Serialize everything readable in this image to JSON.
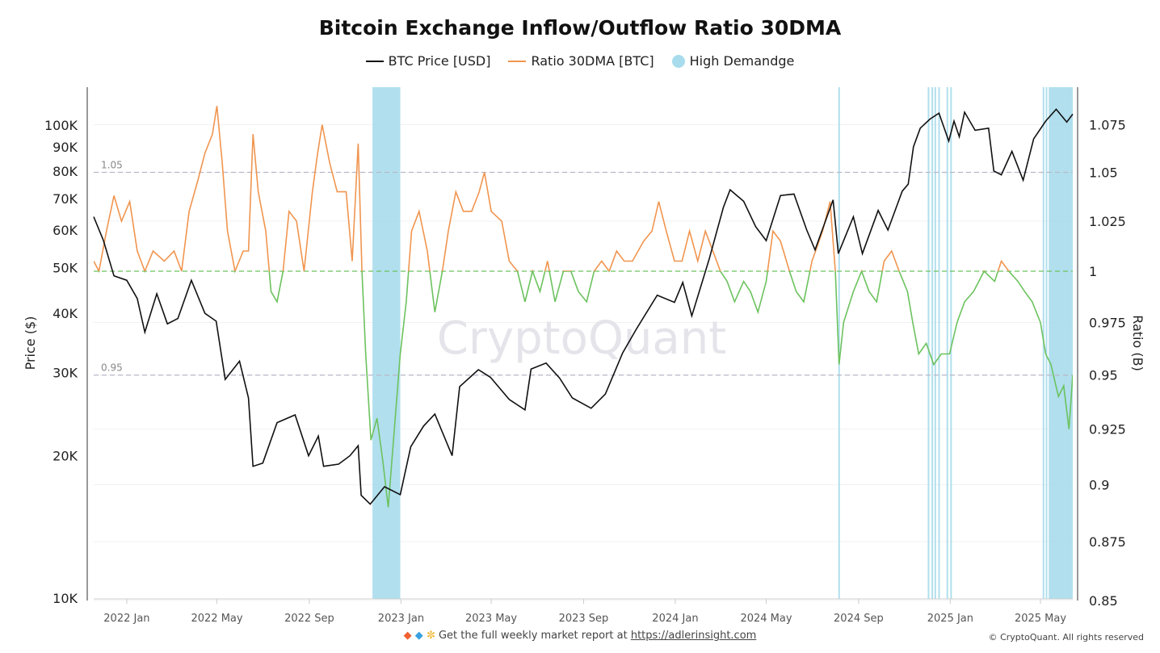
{
  "chart_data": {
    "type": "line",
    "title": "Bitcoin Exchange Inflow/Outflow Ratio 30DMA",
    "legend": [
      "BTC Price [USD]",
      "Ratio 30DMA [BTC]",
      "High Demandge"
    ],
    "legend_position": "top",
    "ylabel_left": "Price ($)",
    "ylabel_right": "Ratio (B)",
    "y_left_scale": "log",
    "y_left_range": [
      10000,
      120000
    ],
    "y_left_ticks": [
      "10K",
      "20K",
      "30K",
      "40K",
      "50K",
      "60K",
      "70K",
      "80K",
      "90K",
      "100K"
    ],
    "y_left_tick_values": [
      10000,
      20000,
      30000,
      40000,
      50000,
      60000,
      70000,
      80000,
      90000,
      100000
    ],
    "y_right_range": [
      0.85,
      1.09
    ],
    "y_right_ticks": [
      "0.85",
      "0.875",
      "0.9",
      "0.925",
      "0.95",
      "0.975",
      "1",
      "1.025",
      "1.05",
      "1.075"
    ],
    "y_right_tick_values": [
      0.85,
      0.875,
      0.9,
      0.925,
      0.95,
      0.975,
      1,
      1.025,
      1.05,
      1.075
    ],
    "x_range": [
      "2021-11-18",
      "2025-06-13"
    ],
    "x_ticks": [
      "2022 Jan",
      "2022 May",
      "2022 Sep",
      "2023 Jan",
      "2023 May",
      "2023 Sep",
      "2024 Jan",
      "2024 May",
      "2024 Sep",
      "2025 Jan",
      "2025 May"
    ],
    "x_tick_dates": [
      "2022-01-01",
      "2022-05-01",
      "2022-09-01",
      "2023-01-01",
      "2023-05-01",
      "2023-09-01",
      "2024-01-01",
      "2024-05-01",
      "2024-09-01",
      "2025-01-01",
      "2025-05-01"
    ],
    "reference_lines": [
      {
        "value": 1.05,
        "label": "1.05"
      },
      {
        "value": 0.95,
        "label": "0.95"
      },
      {
        "value": 1.0,
        "label": ""
      }
    ],
    "grid": true,
    "colors": {
      "price": "#111111",
      "ratio_above_1": "#f0954f",
      "ratio_below_1": "#6cc25e",
      "high_demand": "#a8dcec",
      "ref_line": "#b8b8c8",
      "ref_one": "#6cc25e"
    },
    "series": [
      {
        "name": "BTC Price [USD]",
        "axis": "left",
        "points": [
          [
            "2021-11-18",
            64000
          ],
          [
            "2021-12-01",
            57000
          ],
          [
            "2021-12-15",
            48000
          ],
          [
            "2022-01-01",
            47000
          ],
          [
            "2022-01-15",
            43000
          ],
          [
            "2022-01-25",
            36500
          ],
          [
            "2022-02-10",
            44000
          ],
          [
            "2022-02-24",
            38000
          ],
          [
            "2022-03-10",
            39000
          ],
          [
            "2022-03-28",
            47000
          ],
          [
            "2022-04-15",
            40000
          ],
          [
            "2022-04-30",
            38500
          ],
          [
            "2022-05-12",
            29000
          ],
          [
            "2022-05-31",
            31700
          ],
          [
            "2022-06-12",
            26500
          ],
          [
            "2022-06-18",
            19000
          ],
          [
            "2022-07-01",
            19300
          ],
          [
            "2022-07-20",
            23500
          ],
          [
            "2022-08-13",
            24400
          ],
          [
            "2022-08-31",
            20000
          ],
          [
            "2022-09-13",
            22000
          ],
          [
            "2022-09-20",
            19000
          ],
          [
            "2022-10-10",
            19200
          ],
          [
            "2022-10-25",
            20000
          ],
          [
            "2022-11-05",
            21000
          ],
          [
            "2022-11-09",
            16500
          ],
          [
            "2022-11-21",
            15800
          ],
          [
            "2022-12-10",
            17200
          ],
          [
            "2022-12-31",
            16550
          ],
          [
            "2023-01-14",
            20900
          ],
          [
            "2023-01-31",
            23100
          ],
          [
            "2023-02-15",
            24500
          ],
          [
            "2023-03-10",
            20000
          ],
          [
            "2023-03-20",
            28000
          ],
          [
            "2023-04-14",
            30400
          ],
          [
            "2023-04-30",
            29300
          ],
          [
            "2023-05-25",
            26300
          ],
          [
            "2023-06-15",
            25000
          ],
          [
            "2023-06-23",
            30500
          ],
          [
            "2023-07-13",
            31400
          ],
          [
            "2023-07-31",
            29200
          ],
          [
            "2023-08-17",
            26500
          ],
          [
            "2023-09-11",
            25200
          ],
          [
            "2023-09-30",
            27000
          ],
          [
            "2023-10-23",
            33000
          ],
          [
            "2023-11-10",
            37000
          ],
          [
            "2023-12-08",
            43700
          ],
          [
            "2023-12-31",
            42200
          ],
          [
            "2024-01-11",
            46500
          ],
          [
            "2024-01-23",
            39500
          ],
          [
            "2024-02-15",
            52000
          ],
          [
            "2024-03-05",
            67000
          ],
          [
            "2024-03-14",
            73000
          ],
          [
            "2024-04-01",
            69000
          ],
          [
            "2024-04-17",
            61000
          ],
          [
            "2024-05-01",
            57000
          ],
          [
            "2024-05-20",
            71000
          ],
          [
            "2024-06-07",
            71500
          ],
          [
            "2024-06-24",
            60000
          ],
          [
            "2024-07-05",
            54500
          ],
          [
            "2024-07-29",
            69500
          ],
          [
            "2024-08-05",
            53500
          ],
          [
            "2024-08-25",
            64000
          ],
          [
            "2024-09-06",
            53500
          ],
          [
            "2024-09-27",
            66000
          ],
          [
            "2024-10-10",
            60000
          ],
          [
            "2024-10-29",
            72500
          ],
          [
            "2024-11-06",
            75000
          ],
          [
            "2024-11-13",
            90000
          ],
          [
            "2024-11-22",
            98500
          ],
          [
            "2024-12-05",
            103000
          ],
          [
            "2024-12-17",
            106000
          ],
          [
            "2024-12-30",
            92500
          ],
          [
            "2025-01-06",
            102000
          ],
          [
            "2025-01-13",
            94500
          ],
          [
            "2025-01-20",
            106500
          ],
          [
            "2025-02-03",
            97500
          ],
          [
            "2025-02-21",
            98500
          ],
          [
            "2025-02-28",
            80000
          ],
          [
            "2025-03-10",
            78500
          ],
          [
            "2025-03-24",
            88000
          ],
          [
            "2025-04-08",
            76500
          ],
          [
            "2025-04-22",
            93500
          ],
          [
            "2025-05-08",
            102000
          ],
          [
            "2025-05-22",
            108000
          ],
          [
            "2025-06-05",
            101500
          ],
          [
            "2025-06-13",
            105500
          ]
        ]
      },
      {
        "name": "Ratio 30DMA [BTC]",
        "axis": "right",
        "points": [
          [
            "2021-11-18",
            1.005
          ],
          [
            "2021-11-25",
            1.0
          ],
          [
            "2021-12-05",
            1.02
          ],
          [
            "2021-12-15",
            1.038
          ],
          [
            "2021-12-25",
            1.025
          ],
          [
            "2022-01-05",
            1.035
          ],
          [
            "2022-01-15",
            1.01
          ],
          [
            "2022-01-25",
            1.0
          ],
          [
            "2022-02-05",
            1.01
          ],
          [
            "2022-02-20",
            1.005
          ],
          [
            "2022-03-05",
            1.01
          ],
          [
            "2022-03-15",
            1.0
          ],
          [
            "2022-03-25",
            1.03
          ],
          [
            "2022-04-05",
            1.045
          ],
          [
            "2022-04-15",
            1.06
          ],
          [
            "2022-04-25",
            1.07
          ],
          [
            "2022-05-01",
            1.085
          ],
          [
            "2022-05-08",
            1.055
          ],
          [
            "2022-05-15",
            1.02
          ],
          [
            "2022-05-25",
            1.0
          ],
          [
            "2022-06-05",
            1.01
          ],
          [
            "2022-06-12",
            1.01
          ],
          [
            "2022-06-18",
            1.07
          ],
          [
            "2022-06-25",
            1.04
          ],
          [
            "2022-07-05",
            1.02
          ],
          [
            "2022-07-12",
            0.99
          ],
          [
            "2022-07-20",
            0.985
          ],
          [
            "2022-07-28",
            1.0
          ],
          [
            "2022-08-05",
            1.03
          ],
          [
            "2022-08-15",
            1.025
          ],
          [
            "2022-08-25",
            1.0
          ],
          [
            "2022-09-05",
            1.04
          ],
          [
            "2022-09-12",
            1.06
          ],
          [
            "2022-09-18",
            1.075
          ],
          [
            "2022-09-28",
            1.055
          ],
          [
            "2022-10-08",
            1.04
          ],
          [
            "2022-10-20",
            1.04
          ],
          [
            "2022-10-28",
            1.005
          ],
          [
            "2022-11-05",
            1.065
          ],
          [
            "2022-11-10",
            1.0
          ],
          [
            "2022-11-15",
            0.96
          ],
          [
            "2022-11-22",
            0.92
          ],
          [
            "2022-11-30",
            0.93
          ],
          [
            "2022-12-08",
            0.91
          ],
          [
            "2022-12-15",
            0.89
          ],
          [
            "2022-12-22",
            0.92
          ],
          [
            "2022-12-31",
            0.96
          ],
          [
            "2023-01-08",
            0.985
          ],
          [
            "2023-01-15",
            1.02
          ],
          [
            "2023-01-25",
            1.03
          ],
          [
            "2023-02-05",
            1.01
          ],
          [
            "2023-02-15",
            0.98
          ],
          [
            "2023-02-25",
            1.0
          ],
          [
            "2023-03-05",
            1.02
          ],
          [
            "2023-03-15",
            1.04
          ],
          [
            "2023-03-25",
            1.03
          ],
          [
            "2023-04-05",
            1.03
          ],
          [
            "2023-04-15",
            1.04
          ],
          [
            "2023-04-22",
            1.05
          ],
          [
            "2023-05-01",
            1.03
          ],
          [
            "2023-05-15",
            1.025
          ],
          [
            "2023-05-25",
            1.005
          ],
          [
            "2023-06-05",
            1.0
          ],
          [
            "2023-06-15",
            0.985
          ],
          [
            "2023-06-25",
            1.0
          ],
          [
            "2023-07-05",
            0.99
          ],
          [
            "2023-07-15",
            1.005
          ],
          [
            "2023-07-25",
            0.985
          ],
          [
            "2023-08-05",
            1.0
          ],
          [
            "2023-08-15",
            1.0
          ],
          [
            "2023-08-25",
            0.99
          ],
          [
            "2023-09-05",
            0.985
          ],
          [
            "2023-09-15",
            1.0
          ],
          [
            "2023-09-25",
            1.005
          ],
          [
            "2023-10-05",
            1.0
          ],
          [
            "2023-10-15",
            1.01
          ],
          [
            "2023-10-25",
            1.005
          ],
          [
            "2023-11-05",
            1.005
          ],
          [
            "2023-11-20",
            1.015
          ],
          [
            "2023-12-01",
            1.02
          ],
          [
            "2023-12-10",
            1.035
          ],
          [
            "2023-12-20",
            1.02
          ],
          [
            "2023-12-31",
            1.005
          ],
          [
            "2024-01-10",
            1.005
          ],
          [
            "2024-01-20",
            1.02
          ],
          [
            "2024-01-31",
            1.005
          ],
          [
            "2024-02-10",
            1.02
          ],
          [
            "2024-02-20",
            1.01
          ],
          [
            "2024-03-01",
            1.0
          ],
          [
            "2024-03-10",
            0.995
          ],
          [
            "2024-03-20",
            0.985
          ],
          [
            "2024-04-01",
            0.995
          ],
          [
            "2024-04-10",
            0.99
          ],
          [
            "2024-04-20",
            0.98
          ],
          [
            "2024-05-01",
            0.995
          ],
          [
            "2024-05-10",
            1.02
          ],
          [
            "2024-05-20",
            1.015
          ],
          [
            "2024-06-01",
            1.0
          ],
          [
            "2024-06-10",
            0.99
          ],
          [
            "2024-06-20",
            0.985
          ],
          [
            "2024-07-01",
            1.005
          ],
          [
            "2024-07-15",
            1.02
          ],
          [
            "2024-07-25",
            1.035
          ],
          [
            "2024-08-01",
            1.0
          ],
          [
            "2024-08-06",
            0.955
          ],
          [
            "2024-08-12",
            0.975
          ],
          [
            "2024-08-25",
            0.99
          ],
          [
            "2024-09-05",
            1.0
          ],
          [
            "2024-09-15",
            0.99
          ],
          [
            "2024-09-25",
            0.985
          ],
          [
            "2024-10-05",
            1.005
          ],
          [
            "2024-10-15",
            1.01
          ],
          [
            "2024-10-25",
            1.0
          ],
          [
            "2024-11-05",
            0.99
          ],
          [
            "2024-11-12",
            0.975
          ],
          [
            "2024-11-20",
            0.96
          ],
          [
            "2024-11-30",
            0.965
          ],
          [
            "2024-12-10",
            0.955
          ],
          [
            "2024-12-20",
            0.96
          ],
          [
            "2024-12-31",
            0.96
          ],
          [
            "2025-01-10",
            0.975
          ],
          [
            "2025-01-20",
            0.985
          ],
          [
            "2025-02-01",
            0.99
          ],
          [
            "2025-02-15",
            1.0
          ],
          [
            "2025-03-01",
            0.995
          ],
          [
            "2025-03-10",
            1.005
          ],
          [
            "2025-03-20",
            1.0
          ],
          [
            "2025-04-01",
            0.995
          ],
          [
            "2025-04-10",
            0.99
          ],
          [
            "2025-04-20",
            0.985
          ],
          [
            "2025-05-01",
            0.975
          ],
          [
            "2025-05-08",
            0.96
          ],
          [
            "2025-05-15",
            0.955
          ],
          [
            "2025-05-25",
            0.94
          ],
          [
            "2025-06-01",
            0.945
          ],
          [
            "2025-06-08",
            0.925
          ],
          [
            "2025-06-13",
            0.95
          ]
        ]
      }
    ],
    "high_demand_periods": [
      [
        "2022-11-24",
        "2022-12-31"
      ],
      [
        "2024-08-05",
        "2024-08-07"
      ],
      [
        "2024-12-02",
        "2024-12-03"
      ],
      [
        "2024-12-07",
        "2024-12-08"
      ],
      [
        "2024-12-11",
        "2024-12-12"
      ],
      [
        "2024-12-16",
        "2024-12-17"
      ],
      [
        "2024-12-27",
        "2024-12-28"
      ],
      [
        "2025-01-01",
        "2025-01-02"
      ],
      [
        "2025-05-04",
        "2025-05-05"
      ],
      [
        "2025-05-08",
        "2025-05-09"
      ],
      [
        "2025-05-12",
        "2025-06-13"
      ]
    ]
  },
  "watermark": "CryptoQuant",
  "footer": {
    "icons": [
      "orange-diamond-icon",
      "blue-diamond-icon",
      "raised-hands-icon"
    ],
    "text": "Get the full weekly market report at",
    "link": "https://adlerinsight.com"
  },
  "copyright": "© CryptoQuant. All rights reserved"
}
